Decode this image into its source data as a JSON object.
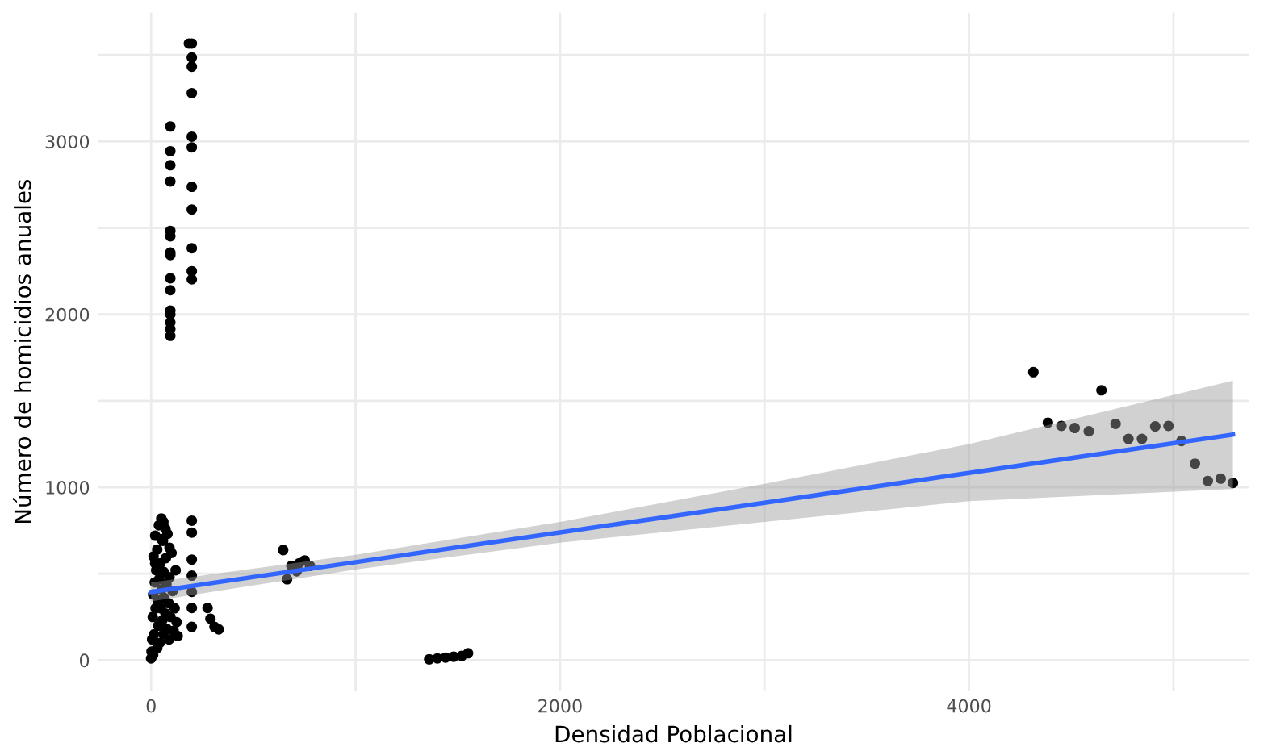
{
  "chart_data": {
    "type": "scatter",
    "xlabel": "Densidad Poblacional",
    "ylabel": "Número de homicidios anuales",
    "xlim": [
      -260,
      5370
    ],
    "ylim": [
      -178,
      3745
    ],
    "xticks": [
      0,
      {
        "value": 1000,
        "label": null
      },
      2000,
      {
        "value": 3000,
        "label": null
      },
      4000,
      {
        "value": 5000,
        "label": null
      }
    ],
    "yticks": [
      0,
      {
        "value": 500,
        "label": null
      },
      1000,
      {
        "value": 1500,
        "label": null
      },
      2000,
      {
        "value": 2500,
        "label": null
      },
      3000,
      {
        "value": 3500,
        "label": null
      }
    ],
    "grid": true,
    "marker": "circle",
    "series": [
      {
        "color": "#000000",
        "x": [
          0,
          2,
          5,
          8,
          10,
          12,
          15,
          18,
          20,
          22,
          25,
          30,
          33,
          35,
          38,
          40,
          42,
          45,
          48,
          50,
          52,
          55,
          58,
          60,
          62,
          65,
          70,
          72,
          75,
          78,
          80,
          85,
          88,
          90,
          95,
          100,
          105,
          110,
          115,
          120,
          125,
          130,
          10,
          30,
          50,
          70,
          90,
          20,
          60,
          94,
          94,
          94,
          94,
          94,
          94,
          94,
          94,
          94,
          94,
          94,
          94,
          94,
          94,
          94,
          199,
          185,
          199,
          199,
          199,
          199,
          199,
          199,
          199,
          199,
          199,
          199,
          199,
          199,
          199,
          199,
          199,
          199,
          199,
          276,
          290,
          310,
          331,
          646,
          665,
          686,
          725,
          751,
          777,
          712,
          1360,
          1400,
          1440,
          1480,
          1520,
          1550,
          4315,
          4648,
          4386,
          4452,
          4517,
          4586,
          4717,
          4780,
          4846,
          4911,
          4976,
          5039,
          5105,
          5168,
          5231,
          5291
        ],
        "values": [
          10,
          50,
          120,
          250,
          380,
          600,
          150,
          450,
          720,
          300,
          520,
          640,
          350,
          200,
          780,
          470,
          100,
          560,
          300,
          820,
          410,
          230,
          690,
          150,
          510,
          360,
          270,
          590,
          440,
          180,
          730,
          330,
          120,
          480,
          250,
          620,
          400,
          170,
          300,
          520,
          220,
          140,
          30,
          70,
          700,
          760,
          650,
          560,
          800,
          3087,
          2944,
          2863,
          2769,
          2483,
          2452,
          2358,
          2343,
          2209,
          2140,
          2022,
          2000,
          1953,
          1916,
          1876,
          3567,
          3567,
          3486,
          3433,
          3280,
          3028,
          2966,
          2738,
          2607,
          2383,
          2250,
          2203,
          807,
          738,
          582,
          489,
          395,
          302,
          193,
          302,
          240,
          193,
          178,
          637,
          468,
          545,
          561,
          577,
          545,
          514,
          5,
          10,
          15,
          20,
          25,
          40,
          1666,
          1561,
          1374,
          1355,
          1343,
          1324,
          1367,
          1280,
          1280,
          1352,
          1355,
          1268,
          1137,
          1037,
          1050,
          1025
        ]
      },
      {
        "type": "line",
        "color": "#3366ff",
        "marker": "none",
        "line_style": "solid",
        "x": [
          0,
          1000,
          2000,
          3000,
          4000,
          5291
        ],
        "values": [
          395,
          567,
          739,
          911,
          1083,
          1305
        ],
        "lower": [
          340,
          525,
          680,
          800,
          920,
          990
        ],
        "upper": [
          450,
          610,
          800,
          1020,
          1250,
          1617
        ]
      }
    ]
  }
}
